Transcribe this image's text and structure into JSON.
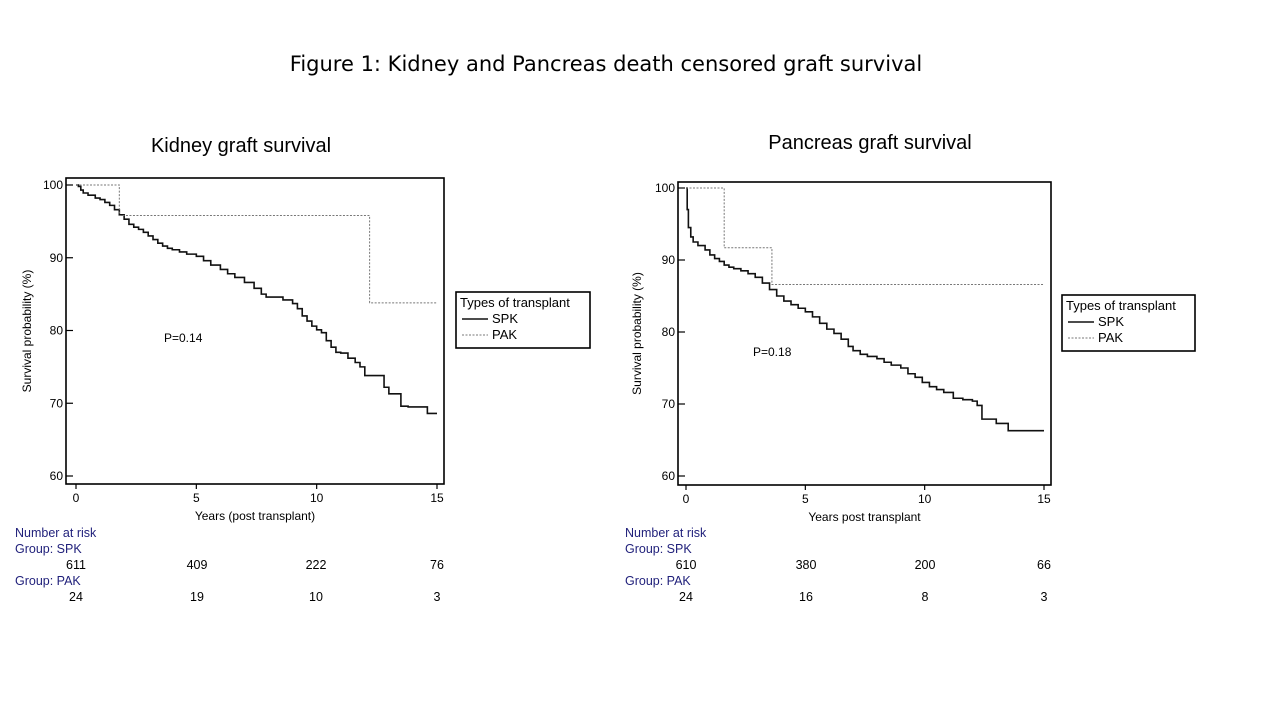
{
  "figure_title": "Figure 1: Kidney and Pancreas death censored graft survival",
  "chart_data": [
    {
      "type": "line",
      "title": "Kidney graft survival",
      "xlabel": "Years (post transplant)",
      "ylabel": "Survival probability (%)",
      "xlim": [
        0,
        15
      ],
      "ylim": [
        60,
        100
      ],
      "xticks": [
        0,
        5,
        10,
        15
      ],
      "yticks": [
        60,
        70,
        80,
        90,
        100
      ],
      "annotation": "P=0.14",
      "legend": {
        "title": "Types of transplant",
        "placement": "right-outside",
        "entries": [
          "SPK",
          "PAK"
        ]
      },
      "series": [
        {
          "name": "SPK",
          "style": "solid",
          "points": [
            [
              0,
              100
            ],
            [
              0.1,
              99.8
            ],
            [
              0.2,
              99.3
            ],
            [
              0.3,
              98.9
            ],
            [
              0.5,
              98.6
            ],
            [
              0.8,
              98.2
            ],
            [
              1.0,
              98.0
            ],
            [
              1.2,
              97.6
            ],
            [
              1.4,
              97.2
            ],
            [
              1.6,
              96.6
            ],
            [
              1.8,
              95.9
            ],
            [
              2.0,
              95.3
            ],
            [
              2.2,
              94.6
            ],
            [
              2.4,
              94.2
            ],
            [
              2.6,
              93.9
            ],
            [
              2.8,
              93.5
            ],
            [
              3.0,
              93.0
            ],
            [
              3.2,
              92.5
            ],
            [
              3.4,
              92.0
            ],
            [
              3.6,
              91.6
            ],
            [
              3.8,
              91.3
            ],
            [
              4.0,
              91.1
            ],
            [
              4.3,
              90.8
            ],
            [
              4.6,
              90.5
            ],
            [
              5.0,
              90.2
            ],
            [
              5.3,
              89.6
            ],
            [
              5.6,
              89.0
            ],
            [
              6.0,
              88.4
            ],
            [
              6.3,
              87.8
            ],
            [
              6.6,
              87.3
            ],
            [
              7.0,
              86.6
            ],
            [
              7.4,
              85.8
            ],
            [
              7.7,
              85.0
            ],
            [
              7.9,
              84.6
            ],
            [
              8.3,
              84.6
            ],
            [
              8.6,
              84.2
            ],
            [
              9.0,
              83.7
            ],
            [
              9.2,
              83.0
            ],
            [
              9.4,
              82.0
            ],
            [
              9.6,
              81.3
            ],
            [
              9.8,
              80.6
            ],
            [
              10.0,
              80.1
            ],
            [
              10.2,
              79.7
            ],
            [
              10.4,
              78.6
            ],
            [
              10.6,
              77.7
            ],
            [
              10.8,
              77.0
            ],
            [
              11.0,
              76.9
            ],
            [
              11.3,
              76.2
            ],
            [
              11.6,
              75.6
            ],
            [
              11.8,
              75.0
            ],
            [
              12.0,
              73.8
            ],
            [
              12.3,
              73.8
            ],
            [
              12.6,
              73.8
            ],
            [
              12.8,
              72.2
            ],
            [
              13.0,
              71.3
            ],
            [
              13.3,
              71.3
            ],
            [
              13.5,
              69.6
            ],
            [
              13.8,
              69.5
            ],
            [
              14.3,
              69.5
            ],
            [
              14.6,
              68.6
            ],
            [
              15.0,
              68.6
            ]
          ]
        },
        {
          "name": "PAK",
          "style": "dashed",
          "points": [
            [
              0,
              100
            ],
            [
              1.8,
              100
            ],
            [
              1.8,
              95.8
            ],
            [
              12.2,
              95.8
            ],
            [
              12.2,
              83.8
            ],
            [
              15.0,
              83.8
            ]
          ]
        }
      ],
      "risk_table": {
        "heading": "Number at risk",
        "groups": [
          {
            "label": "Group: SPK",
            "values": [
              611,
              409,
              222,
              76
            ]
          },
          {
            "label": "Group: PAK",
            "values": [
              24,
              19,
              10,
              3
            ]
          }
        ]
      }
    },
    {
      "type": "line",
      "title": "Pancreas graft survival",
      "xlabel": "Years post transplant",
      "ylabel": "Survival probability (%)",
      "xlim": [
        0,
        15
      ],
      "ylim": [
        60,
        100
      ],
      "xticks": [
        0,
        5,
        10,
        15
      ],
      "yticks": [
        60,
        70,
        80,
        90,
        100
      ],
      "annotation": "P=0.18",
      "legend": {
        "title": "Types of transplant",
        "placement": "right-outside",
        "entries": [
          "SPK",
          "PAK"
        ]
      },
      "series": [
        {
          "name": "SPK",
          "style": "solid",
          "points": [
            [
              0,
              100
            ],
            [
              0.05,
              97
            ],
            [
              0.1,
              94.5
            ],
            [
              0.2,
              93.2
            ],
            [
              0.3,
              92.5
            ],
            [
              0.5,
              92.0
            ],
            [
              0.8,
              91.4
            ],
            [
              1.0,
              90.7
            ],
            [
              1.2,
              90.2
            ],
            [
              1.4,
              89.8
            ],
            [
              1.6,
              89.3
            ],
            [
              1.8,
              89.0
            ],
            [
              2.0,
              88.8
            ],
            [
              2.3,
              88.5
            ],
            [
              2.6,
              88.1
            ],
            [
              2.9,
              87.6
            ],
            [
              3.2,
              86.8
            ],
            [
              3.5,
              85.9
            ],
            [
              3.8,
              85.0
            ],
            [
              4.1,
              84.3
            ],
            [
              4.4,
              83.8
            ],
            [
              4.7,
              83.3
            ],
            [
              5.0,
              82.8
            ],
            [
              5.3,
              82.1
            ],
            [
              5.6,
              81.2
            ],
            [
              5.9,
              80.4
            ],
            [
              6.2,
              79.8
            ],
            [
              6.5,
              79.0
            ],
            [
              6.8,
              78.0
            ],
            [
              7.0,
              77.4
            ],
            [
              7.3,
              76.9
            ],
            [
              7.6,
              76.6
            ],
            [
              8.0,
              76.3
            ],
            [
              8.3,
              75.8
            ],
            [
              8.6,
              75.4
            ],
            [
              9.0,
              75.0
            ],
            [
              9.3,
              74.2
            ],
            [
              9.6,
              73.7
            ],
            [
              9.9,
              73.0
            ],
            [
              10.2,
              72.4
            ],
            [
              10.5,
              72.0
            ],
            [
              10.8,
              71.6
            ],
            [
              11.2,
              70.8
            ],
            [
              11.6,
              70.6
            ],
            [
              12.0,
              70.4
            ],
            [
              12.2,
              69.8
            ],
            [
              12.4,
              67.9
            ],
            [
              12.8,
              67.9
            ],
            [
              13.0,
              67.3
            ],
            [
              13.3,
              67.3
            ],
            [
              13.5,
              66.3
            ],
            [
              14.0,
              66.3
            ],
            [
              15.0,
              66.3
            ]
          ]
        },
        {
          "name": "PAK",
          "style": "dashed",
          "points": [
            [
              0,
              100
            ],
            [
              1.6,
              100
            ],
            [
              1.6,
              91.7
            ],
            [
              3.6,
              91.7
            ],
            [
              3.6,
              86.6
            ],
            [
              15.0,
              86.6
            ]
          ]
        }
      ],
      "risk_table": {
        "heading": "Number at risk",
        "groups": [
          {
            "label": "Group: SPK",
            "values": [
              610,
              380,
              200,
              66
            ]
          },
          {
            "label": "Group: PAK",
            "values": [
              24,
              16,
              8,
              3
            ]
          }
        ]
      }
    }
  ]
}
